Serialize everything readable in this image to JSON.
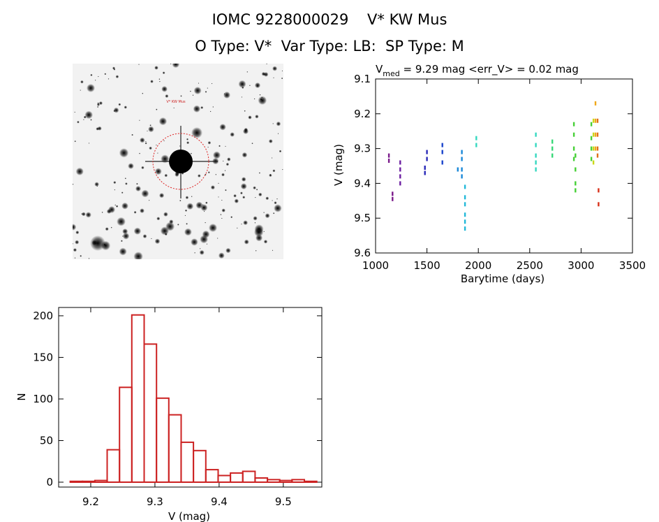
{
  "header": {
    "title_line1": "IOMC 9228000029    V* KW Mus",
    "title_line2": "O Type: V*  Var Type: LB:  SP Type: M"
  },
  "chart_data": [
    {
      "type": "scatter",
      "title_prefix": "V",
      "title_sub": "med",
      "title_rest": " = 9.29 mag <err_V> = 0.02 mag",
      "xlabel": "Barytime (days)",
      "ylabel": "V (mag)",
      "xlim": [
        1000,
        3500
      ],
      "ylim": [
        9.6,
        9.1
      ],
      "xticks": [
        1000,
        1500,
        2000,
        2500,
        3000,
        3500
      ],
      "yticks": [
        9.1,
        9.2,
        9.3,
        9.4,
        9.5,
        9.6
      ],
      "colors": [
        "#7a1a8a",
        "#6b1ea0",
        "#2a2ab8",
        "#1a44cc",
        "#1a88d8",
        "#22b8d8",
        "#36d8c0",
        "#38d878",
        "#46d036",
        "#cbd81a",
        "#f0a81a",
        "#e07018",
        "#d83018"
      ],
      "groups": [
        {
          "x": 1130,
          "y": [
            9.32,
            9.335
          ],
          "color": 0
        },
        {
          "x": 1165,
          "y": [
            9.43,
            9.445
          ],
          "color": 0
        },
        {
          "x": 1240,
          "y": [
            9.34,
            9.36,
            9.38,
            9.4
          ],
          "color": 1
        },
        {
          "x": 1480,
          "y": [
            9.355,
            9.37
          ],
          "color": 2
        },
        {
          "x": 1500,
          "y": [
            9.31,
            9.33
          ],
          "color": 2
        },
        {
          "x": 1650,
          "y": [
            9.29,
            9.31,
            9.34
          ],
          "color": 3
        },
        {
          "x": 1800,
          "y": [
            9.36
          ],
          "color": 4
        },
        {
          "x": 1840,
          "y": [
            9.31,
            9.33,
            9.36,
            9.38
          ],
          "color": 4
        },
        {
          "x": 1870,
          "y": [
            9.41,
            9.44,
            9.46,
            9.49,
            9.51,
            9.53
          ],
          "color": 5
        },
        {
          "x": 1980,
          "y": [
            9.27,
            9.29
          ],
          "color": 6
        },
        {
          "x": 2560,
          "y": [
            9.26,
            9.29,
            9.32,
            9.34,
            9.36
          ],
          "color": 6
        },
        {
          "x": 2720,
          "y": [
            9.28,
            9.3,
            9.32
          ],
          "color": 7
        },
        {
          "x": 2930,
          "y": [
            9.23,
            9.26,
            9.3,
            9.33
          ],
          "color": 8
        },
        {
          "x": 2945,
          "y": [
            9.32,
            9.36,
            9.4,
            9.42
          ],
          "color": 8
        },
        {
          "x": 3100,
          "y": [
            9.23,
            9.27,
            9.3,
            9.33
          ],
          "color": 8
        },
        {
          "x": 3120,
          "y": [
            9.22,
            9.26,
            9.3,
            9.34
          ],
          "color": 9
        },
        {
          "x": 3140,
          "y": [
            9.17,
            9.22,
            9.26,
            9.3
          ],
          "color": 10
        },
        {
          "x": 3160,
          "y": [
            9.22,
            9.26,
            9.3,
            9.32
          ],
          "color": 11
        },
        {
          "x": 3170,
          "y": [
            9.42,
            9.46
          ],
          "color": 12
        }
      ]
    },
    {
      "type": "bar",
      "xlabel": "V (mag)",
      "ylabel": "N",
      "xlim": [
        9.15,
        9.56
      ],
      "ylim": [
        0,
        210
      ],
      "xticks": [
        9.2,
        9.3,
        9.4,
        9.5
      ],
      "yticks": [
        0,
        50,
        100,
        150,
        200
      ],
      "bin_start": 9.168,
      "bin_width": 0.0192,
      "values": [
        1,
        1,
        2,
        39,
        114,
        201,
        166,
        101,
        81,
        48,
        38,
        15,
        8,
        11,
        13,
        5,
        3,
        2,
        3,
        1
      ],
      "color": "#cc2222"
    }
  ],
  "image": {
    "label_top": "V* KW Mus",
    "circle_color": "#dd2222"
  }
}
